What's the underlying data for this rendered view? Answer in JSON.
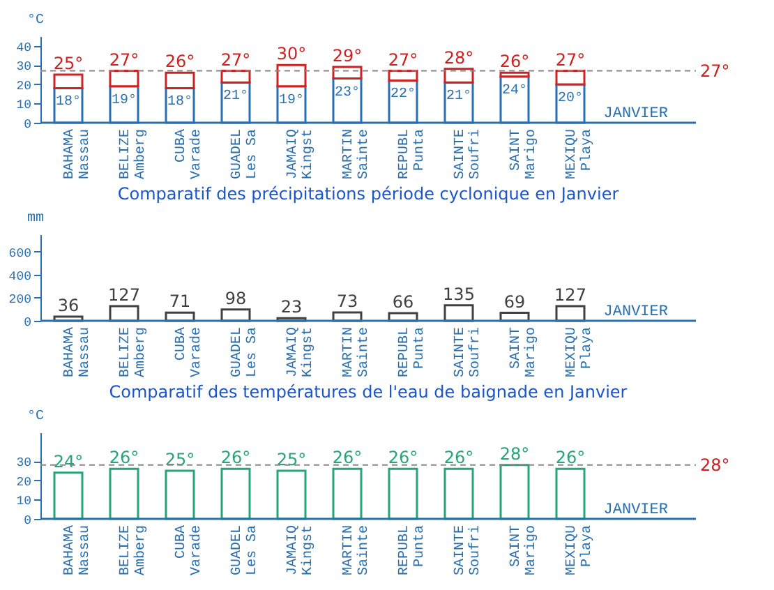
{
  "chart_data": [
    {
      "type": "bar",
      "categories": [
        "BAHAMA\nNassau",
        "BELIZE\nAmberg",
        "CUBA\nVarade",
        "GUADEL\nLes Sa",
        "JAMAIQ\nKingst",
        "MARTIN\nSainte",
        "REPUBL\nPunta",
        "SAINTE\nSoufri",
        "SAINT\nMarigo",
        "MEXIQU\nPlaya"
      ],
      "series": [
        {
          "color": "#2a6fb0",
          "values": [
            18,
            19,
            18,
            21,
            19,
            23,
            22,
            21,
            24,
            20
          ],
          "value_labels": [
            "18°",
            "19°",
            "18°",
            "21°",
            "19°",
            "23°",
            "22°",
            "21°",
            "24°",
            "20°"
          ]
        },
        {
          "color": "#cc2222",
          "values": [
            7,
            8,
            8,
            6,
            11,
            6,
            5,
            7,
            2,
            7
          ]
        }
      ],
      "stacked": true,
      "totals": [
        "25°",
        "27°",
        "26°",
        "27°",
        "30°",
        "29°",
        "27°",
        "28°",
        "26°",
        "27°"
      ],
      "ylabel": "°C",
      "ylim": [
        0,
        45
      ],
      "yticks": [
        0,
        10,
        20,
        30,
        40
      ],
      "ref_lines": [
        {
          "axis": "y",
          "value": 27,
          "label": "27°",
          "line_style": "dashed"
        }
      ],
      "annotations": [
        "JANVIER"
      ]
    },
    {
      "type": "bar",
      "title": "Comparatif des précipitations période cyclonique en Janvier",
      "categories": [
        "BAHAMA\nNassau",
        "BELIZE\nAmberg",
        "CUBA\nVarade",
        "GUADEL\nLes Sa",
        "JAMAIQ\nKingst",
        "MARTIN\nSainte",
        "REPUBL\nPunta",
        "SAINTE\nSoufri",
        "SAINT\nMarigo",
        "MEXIQU\nPlaya"
      ],
      "series": [
        {
          "color": "#404040",
          "values": [
            36,
            127,
            71,
            98,
            23,
            73,
            66,
            135,
            69,
            127
          ]
        }
      ],
      "data_labels": true,
      "ylabel": "mm",
      "ylim": [
        0,
        750
      ],
      "yticks": [
        0,
        200,
        400,
        600
      ],
      "annotations": [
        "JANVIER"
      ]
    },
    {
      "type": "bar",
      "title": "Comparatif des températures de l'eau de baignade en Janvier",
      "categories": [
        "BAHAMA\nNassau",
        "BELIZE\nAmberg",
        "CUBA\nVarade",
        "GUADEL\nLes Sa",
        "JAMAIQ\nKingst",
        "MARTIN\nSainte",
        "REPUBL\nPunta",
        "SAINTE\nSoufri",
        "SAINT\nMarigo",
        "MEXIQU\nPlaya"
      ],
      "series": [
        {
          "color": "#2aa37a",
          "values": [
            24,
            26,
            25,
            26,
            25,
            26,
            26,
            26,
            28,
            26
          ],
          "value_labels": [
            "24°",
            "26°",
            "25°",
            "26°",
            "25°",
            "26°",
            "26°",
            "26°",
            "28°",
            "26°"
          ]
        }
      ],
      "ylabel": "°C",
      "ylim": [
        0,
        45
      ],
      "yticks": [
        0,
        10,
        20,
        30
      ],
      "ref_lines": [
        {
          "axis": "y",
          "value": 28,
          "label": "28°",
          "line_style": "dashed"
        }
      ],
      "annotations": [
        "JANVIER"
      ]
    }
  ]
}
